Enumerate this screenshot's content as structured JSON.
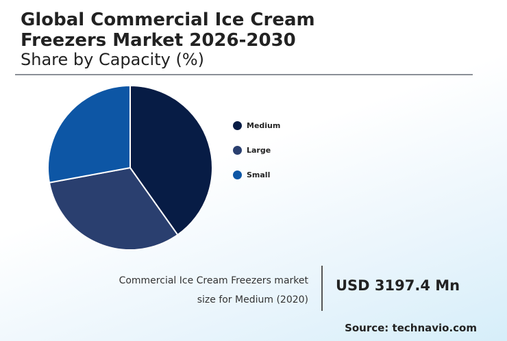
{
  "header": {
    "title": "Global Commercial Ice Cream Freezers Market 2026-2030",
    "subtitle": "Share by Capacity (%)"
  },
  "chart_data": {
    "type": "pie",
    "title": "Global Commercial Ice Cream Freezers Market 2026-2030",
    "subtitle": "Share by Capacity (%)",
    "legend_position": "right",
    "slices": [
      {
        "label": "Medium",
        "value": 40.2,
        "color": "#071c45"
      },
      {
        "label": "Large",
        "value": 31.9,
        "color": "#2a3f6f"
      },
      {
        "label": "Small",
        "value": 27.9,
        "color": "#0d56a5"
      }
    ]
  },
  "callout": {
    "description": "Commercial Ice Cream Freezers market size for Medium (2020)",
    "value": "USD 3197.4 Mn"
  },
  "footer": {
    "source": "Source: technavio.com"
  }
}
